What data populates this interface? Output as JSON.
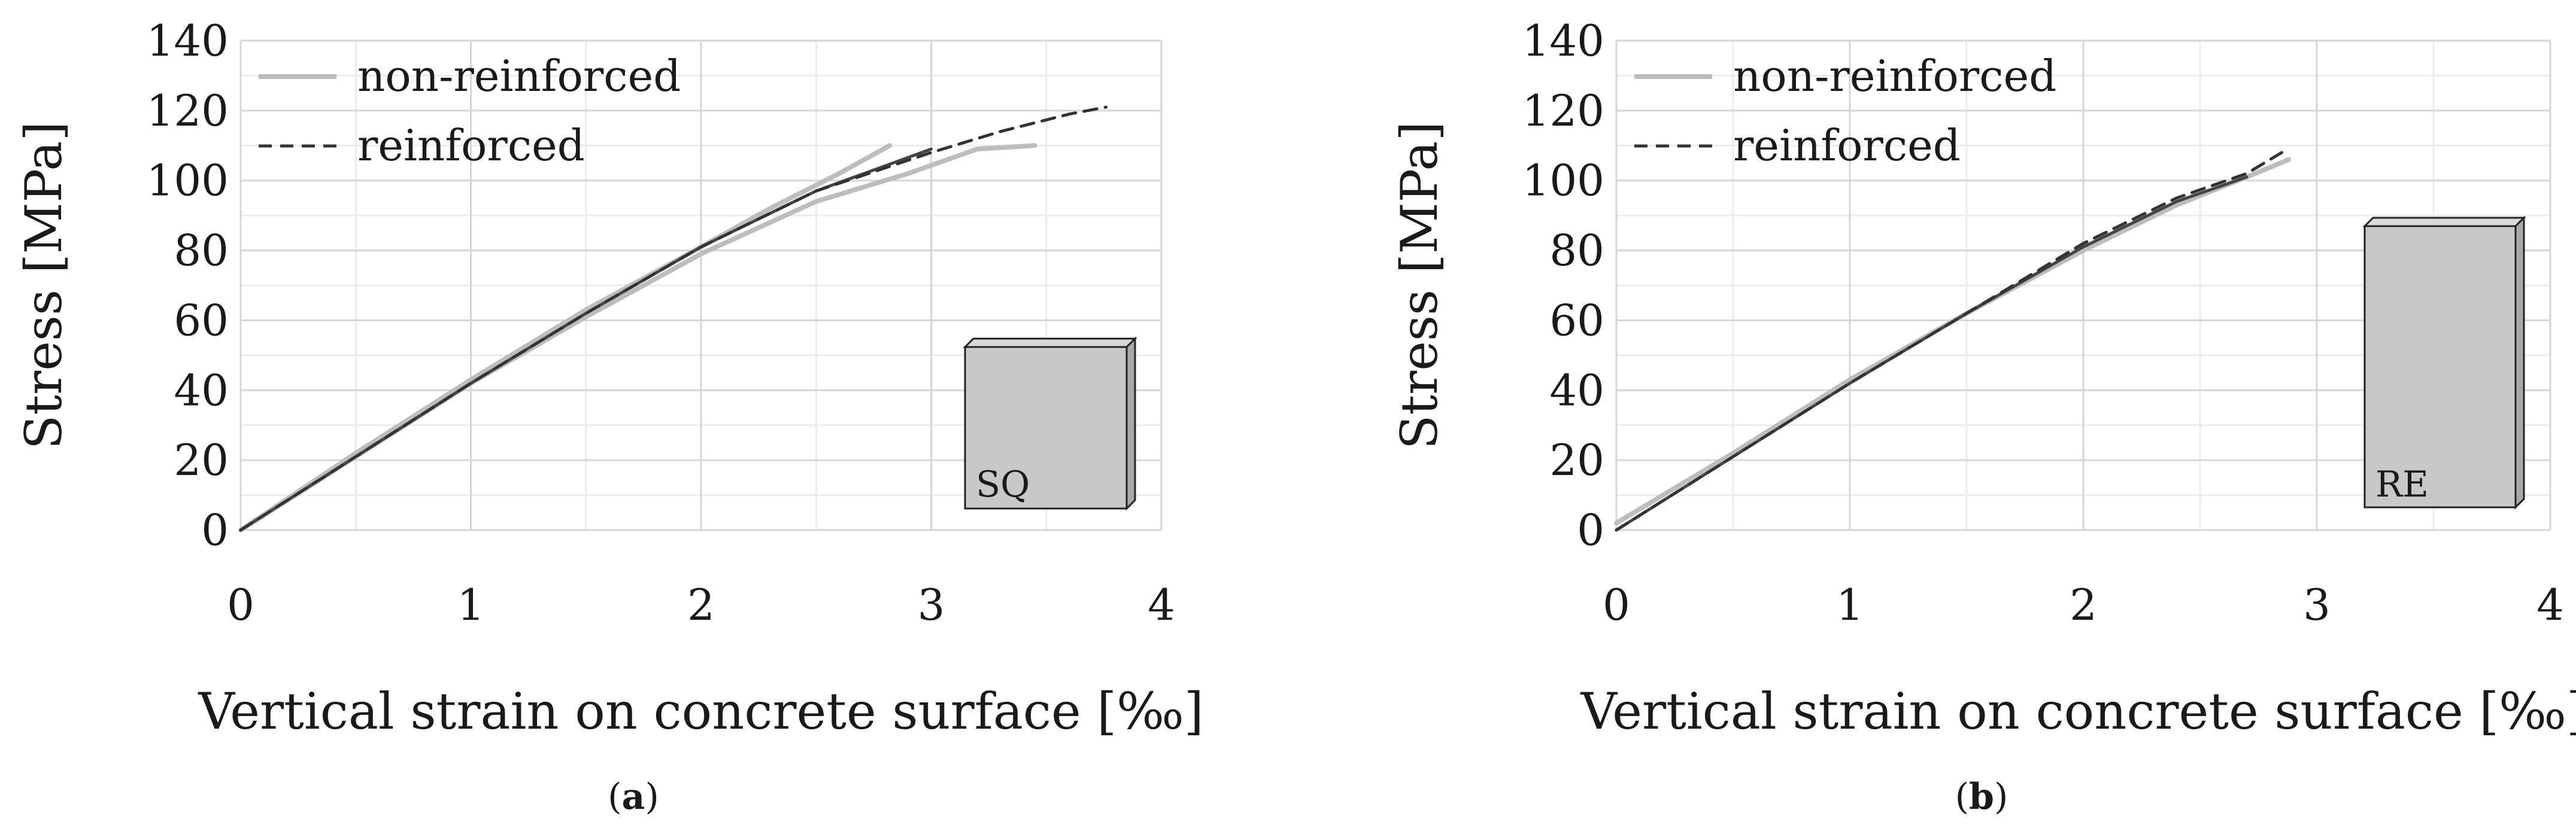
{
  "chart_data": [
    {
      "type": "line",
      "caption": "a",
      "xlabel": "Vertical strain on concrete surface [‰]",
      "ylabel": "Stress [MPa]",
      "xlim": [
        0,
        4
      ],
      "ylim": [
        0,
        140
      ],
      "x_ticks": [
        0,
        1,
        2,
        3,
        4
      ],
      "y_ticks": [
        0,
        20,
        40,
        60,
        80,
        100,
        120,
        140
      ],
      "grid": true,
      "legend": "top-left",
      "inset_label": "SQ",
      "inset_shape": "square",
      "series": [
        {
          "name": "non-reinforced",
          "style": "solid",
          "color": "#bdbdbd",
          "x": [
            0,
            0.5,
            1.0,
            1.5,
            2.0,
            2.3,
            2.6,
            2.82
          ],
          "y": [
            0,
            22,
            43,
            63,
            81,
            92,
            102,
            110
          ]
        },
        {
          "name": "",
          "style": "solid",
          "color": "#bdbdbd",
          "x": [
            0,
            0.5,
            1.0,
            1.5,
            2.0,
            2.5,
            2.9,
            3.2,
            3.45
          ],
          "y": [
            0,
            21,
            42,
            61,
            79,
            94,
            102,
            109,
            110
          ]
        },
        {
          "name": "",
          "style": "solid",
          "color": "#444444",
          "x": [
            0,
            0.5,
            1.0,
            1.5,
            2.0,
            2.5,
            3.0
          ],
          "y": [
            0,
            21,
            42,
            62,
            81,
            97,
            109
          ]
        },
        {
          "name": "reinforced",
          "style": "dashed",
          "color": "#333333",
          "x": [
            0,
            0.5,
            1.0,
            1.5,
            2.0,
            2.5,
            3.0,
            3.3,
            3.6,
            3.76
          ],
          "y": [
            0,
            21,
            42,
            62,
            81,
            97,
            108,
            114,
            119,
            121
          ]
        }
      ]
    },
    {
      "type": "line",
      "caption": "b",
      "xlabel": "Vertical strain on concrete surface [‰]",
      "ylabel": "Stress [MPa]",
      "xlim": [
        0,
        4
      ],
      "ylim": [
        0,
        140
      ],
      "x_ticks": [
        0,
        1,
        2,
        3,
        4
      ],
      "y_ticks": [
        0,
        20,
        40,
        60,
        80,
        100,
        120,
        140
      ],
      "grid": true,
      "legend": "top-left",
      "inset_label": "RE",
      "inset_shape": "tall-rectangle",
      "series": [
        {
          "name": "non-reinforced",
          "style": "solid",
          "color": "#bdbdbd",
          "x": [
            0,
            0.5,
            1.0,
            1.5,
            2.0,
            2.4,
            2.7,
            2.88
          ],
          "y": [
            2,
            22,
            43,
            62,
            80,
            93,
            101,
            106
          ]
        },
        {
          "name": "",
          "style": "solid",
          "color": "#444444",
          "x": [
            0,
            0.5,
            1.0,
            1.5,
            2.0,
            2.4,
            2.7
          ],
          "y": [
            0,
            21,
            42,
            62,
            81,
            94,
            101
          ]
        },
        {
          "name": "reinforced",
          "style": "dashed",
          "color": "#333333",
          "x": [
            0,
            0.5,
            1.0,
            1.5,
            2.0,
            2.4,
            2.7,
            2.85
          ],
          "y": [
            0,
            21,
            42,
            62,
            82,
            95,
            102,
            108
          ]
        }
      ]
    }
  ]
}
